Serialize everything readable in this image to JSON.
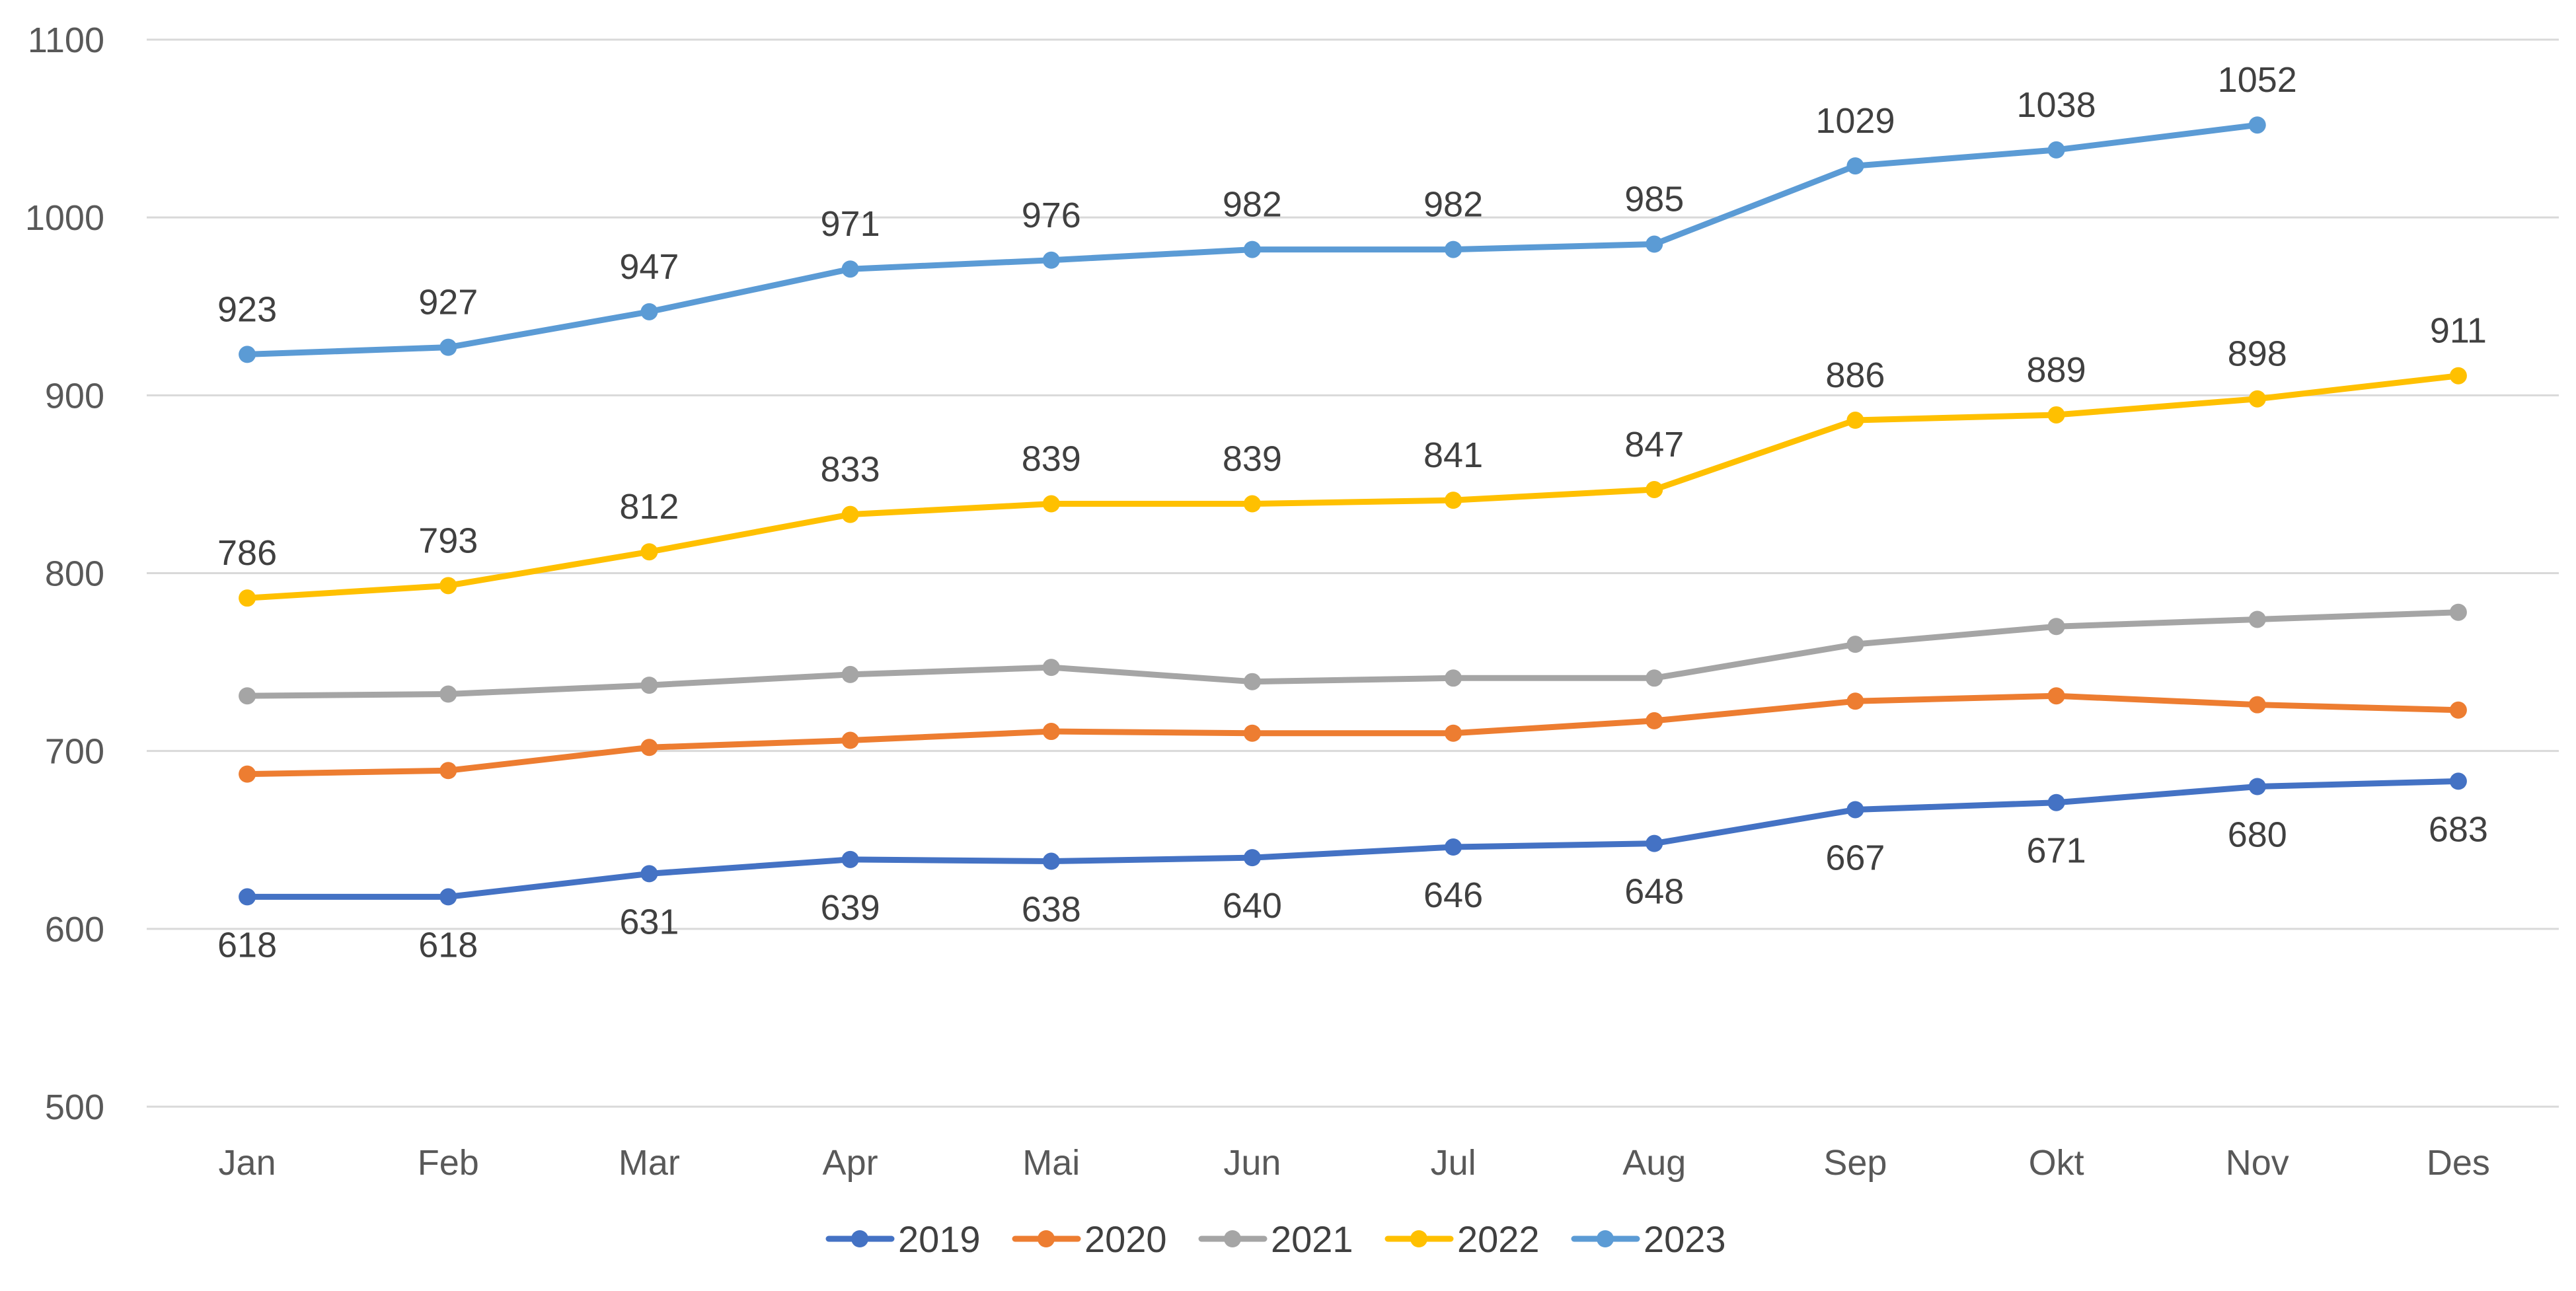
{
  "chart_data": {
    "type": "line",
    "title": "",
    "xlabel": "",
    "ylabel": "",
    "categories": [
      "Jan",
      "Feb",
      "Mar",
      "Apr",
      "Mai",
      "Jun",
      "Jul",
      "Aug",
      "Sep",
      "Okt",
      "Nov",
      "Des"
    ],
    "ylim": [
      500,
      1100
    ],
    "yticks": [
      500,
      600,
      700,
      800,
      900,
      1000,
      1100
    ],
    "grid": true,
    "legend_position": "bottom",
    "series": [
      {
        "name": "2019",
        "color": "#4472C4",
        "label_position": "below",
        "values": [
          618,
          618,
          631,
          639,
          638,
          640,
          646,
          648,
          667,
          671,
          680,
          683
        ]
      },
      {
        "name": "2020",
        "color": "#ED7D31",
        "label_position": "none",
        "values": [
          687,
          689,
          702,
          706,
          711,
          710,
          710,
          717,
          728,
          731,
          726,
          723
        ]
      },
      {
        "name": "2021",
        "color": "#A5A5A5",
        "label_position": "none",
        "values": [
          731,
          732,
          737,
          743,
          747,
          739,
          741,
          741,
          760,
          770,
          774,
          778
        ]
      },
      {
        "name": "2022",
        "color": "#FFC000",
        "label_position": "above",
        "values": [
          786,
          793,
          812,
          833,
          839,
          839,
          841,
          847,
          886,
          889,
          898,
          911
        ]
      },
      {
        "name": "2023",
        "color": "#5B9BD5",
        "label_position": "above",
        "values": [
          923,
          927,
          947,
          971,
          976,
          982,
          982,
          985,
          1029,
          1038,
          1052,
          null
        ]
      }
    ]
  }
}
